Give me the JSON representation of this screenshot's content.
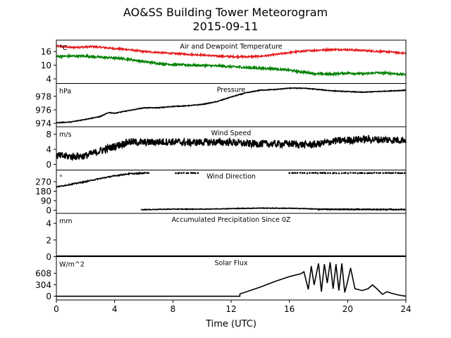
{
  "figure": {
    "title": "AO&SS Building Tower Meteorogram",
    "date": "2015-09-11",
    "xlabel": "Time (UTC)"
  },
  "chart_data": {
    "type": "line",
    "x_range": [
      0,
      24
    ],
    "x_ticks": [
      0,
      4,
      8,
      12,
      16,
      20,
      24
    ],
    "grid": false,
    "panels": [
      {
        "name": "temperature",
        "title": "Air and Dewpoint Temperature",
        "unit": "°C",
        "ylim": [
          2,
          21
        ],
        "yticks": [
          4,
          10,
          16
        ],
        "series": [
          {
            "color": "#e41a1c",
            "noise": 0.35,
            "points": [
              [
                0,
                18.4
              ],
              [
                1,
                17.8
              ],
              [
                2,
                18.0
              ],
              [
                2.5,
                18.2
              ],
              [
                4,
                17.3
              ],
              [
                5,
                16.8
              ],
              [
                6,
                16.0
              ],
              [
                7,
                15.6
              ],
              [
                8,
                15.1
              ],
              [
                9,
                14.8
              ],
              [
                10,
                14.5
              ],
              [
                11,
                14.0
              ],
              [
                12,
                13.8
              ],
              [
                13,
                13.7
              ],
              [
                14,
                13.9
              ],
              [
                15,
                14.6
              ],
              [
                16,
                15.6
              ],
              [
                17,
                16.2
              ],
              [
                18,
                16.6
              ],
              [
                19,
                16.9
              ],
              [
                20,
                16.8
              ],
              [
                21,
                16.5
              ],
              [
                22,
                16.1
              ],
              [
                23,
                15.8
              ],
              [
                24,
                15.2
              ]
            ]
          },
          {
            "color": "#008000",
            "noise": 0.45,
            "points": [
              [
                0,
                13.8
              ],
              [
                1,
                14.0
              ],
              [
                2,
                14.0
              ],
              [
                3,
                13.5
              ],
              [
                4,
                13.2
              ],
              [
                5,
                12.6
              ],
              [
                6,
                11.6
              ],
              [
                7,
                10.8
              ],
              [
                8,
                10.3
              ],
              [
                9,
                10.1
              ],
              [
                10,
                9.9
              ],
              [
                11,
                9.7
              ],
              [
                12,
                9.4
              ],
              [
                13,
                9.0
              ],
              [
                14,
                8.7
              ],
              [
                15,
                8.4
              ],
              [
                16,
                7.8
              ],
              [
                17,
                6.9
              ],
              [
                18,
                6.2
              ],
              [
                19,
                6.1
              ],
              [
                20,
                6.6
              ],
              [
                21,
                6.2
              ],
              [
                22,
                6.7
              ],
              [
                23,
                6.4
              ],
              [
                24,
                5.9
              ]
            ]
          }
        ]
      },
      {
        "name": "pressure",
        "title": "Pressure",
        "unit": "hPa",
        "ylim": [
          973.5,
          979.9
        ],
        "yticks": [
          974,
          976,
          978
        ],
        "series": [
          {
            "color": "#000000",
            "noise": 0.05,
            "points": [
              [
                0,
                974.1
              ],
              [
                1,
                974.2
              ],
              [
                2,
                974.6
              ],
              [
                3,
                975.0
              ],
              [
                3.6,
                975.6
              ],
              [
                4,
                975.5
              ],
              [
                5,
                975.9
              ],
              [
                6,
                976.3
              ],
              [
                7,
                976.3
              ],
              [
                8,
                976.5
              ],
              [
                9,
                976.6
              ],
              [
                10,
                976.8
              ],
              [
                11,
                977.2
              ],
              [
                12,
                977.9
              ],
              [
                13,
                978.5
              ],
              [
                14,
                978.9
              ],
              [
                15,
                979.0
              ],
              [
                16,
                979.2
              ],
              [
                17,
                979.2
              ],
              [
                18,
                979.0
              ],
              [
                19,
                978.8
              ],
              [
                20,
                978.7
              ],
              [
                21,
                978.6
              ],
              [
                22,
                978.7
              ],
              [
                23,
                978.8
              ],
              [
                24,
                978.9
              ]
            ]
          }
        ]
      },
      {
        "name": "wind_speed",
        "title": "Wind Speed",
        "unit": "m/s",
        "ylim": [
          -1.5,
          10
        ],
        "yticks": [
          0,
          4,
          8
        ],
        "series": [
          {
            "color": "#000000",
            "noise": 1.0,
            "points": [
              [
                0,
                2.3
              ],
              [
                1,
                2.1
              ],
              [
                2,
                2.3
              ],
              [
                3,
                3.6
              ],
              [
                4,
                4.8
              ],
              [
                5,
                6.0
              ],
              [
                6,
                5.8
              ],
              [
                7,
                6.0
              ],
              [
                8,
                6.0
              ],
              [
                9,
                5.8
              ],
              [
                10,
                5.9
              ],
              [
                11,
                5.9
              ],
              [
                12,
                5.9
              ],
              [
                13,
                5.5
              ],
              [
                14,
                5.5
              ],
              [
                15,
                5.4
              ],
              [
                16,
                5.5
              ],
              [
                17,
                5.2
              ],
              [
                18,
                5.4
              ],
              [
                19,
                6.2
              ],
              [
                20,
                6.4
              ],
              [
                21,
                6.7
              ],
              [
                22,
                6.6
              ],
              [
                23,
                6.5
              ],
              [
                24,
                6.5
              ]
            ]
          }
        ]
      },
      {
        "name": "wind_direction",
        "title": "Wind Direction",
        "unit": "°",
        "ylim": [
          -30,
          380
        ],
        "yticks": [
          0,
          90,
          180,
          270
        ],
        "series": [
          {
            "color": "#000000",
            "noise": 5,
            "t_end": 6,
            "points": [
              [
                0,
                220
              ],
              [
                1,
                245
              ],
              [
                2,
                270
              ],
              [
                3,
                300
              ],
              [
                4,
                325
              ],
              [
                5,
                345
              ],
              [
                6,
                350
              ]
            ]
          },
          {
            "color": "#000000",
            "noise": 3,
            "t_start": 5.8,
            "points": [
              [
                5.8,
                5
              ],
              [
                8,
                10
              ],
              [
                10,
                10
              ],
              [
                12,
                15
              ],
              [
                14,
                20
              ],
              [
                16,
                18
              ],
              [
                17,
                15
              ],
              [
                18,
                10
              ],
              [
                20,
                8
              ],
              [
                22,
                6
              ],
              [
                24,
                6
              ]
            ]
          }
        ],
        "scatter_top": {
          "y": 352,
          "ranges": [
            [
              6,
              6.4
            ],
            [
              8.2,
              9.8
            ],
            [
              16,
              18.5
            ],
            [
              18.3,
              24
            ]
          ]
        },
        "scatter_bottom": {
          "y": 8,
          "ranges": [
            [
              18,
              24
            ]
          ]
        }
      },
      {
        "name": "precip",
        "title": "Accumulated Precipitation Since 0Z",
        "unit": "mm",
        "ylim": [
          0,
          5.2
        ],
        "yticks": [
          0,
          2,
          4
        ],
        "series": [
          {
            "color": "#000000",
            "noise": 0,
            "points": [
              [
                0,
                0
              ],
              [
                24,
                0
              ]
            ]
          }
        ]
      },
      {
        "name": "solar",
        "title": "Solar Flux",
        "unit": "W/m^2",
        "ylim": [
          -100,
          1050
        ],
        "yticks": [
          0,
          304,
          608
        ],
        "series": [
          {
            "color": "#000000",
            "noise": 0,
            "points": [
              [
                0,
                0
              ],
              [
                12.6,
                0
              ],
              [
                12.6,
                60
              ],
              [
                14,
                240
              ],
              [
                15,
                390
              ],
              [
                16,
                520
              ],
              [
                16.8,
                600
              ],
              [
                17,
                650
              ],
              [
                17.3,
                180
              ],
              [
                17.5,
                800
              ],
              [
                17.7,
                300
              ],
              [
                18,
                870
              ],
              [
                18.2,
                120
              ],
              [
                18.4,
                850
              ],
              [
                18.6,
                350
              ],
              [
                18.8,
                900
              ],
              [
                19,
                200
              ],
              [
                19.2,
                850
              ],
              [
                19.4,
                150
              ],
              [
                19.6,
                870
              ],
              [
                19.8,
                100
              ],
              [
                20,
                400
              ],
              [
                20.2,
                750
              ],
              [
                20.5,
                200
              ],
              [
                21,
                150
              ],
              [
                21.4,
                200
              ],
              [
                21.7,
                300
              ],
              [
                22,
                200
              ],
              [
                22.4,
                50
              ],
              [
                22.7,
                120
              ],
              [
                23,
                80
              ],
              [
                23.5,
                30
              ],
              [
                24,
                0
              ]
            ]
          }
        ]
      }
    ]
  }
}
